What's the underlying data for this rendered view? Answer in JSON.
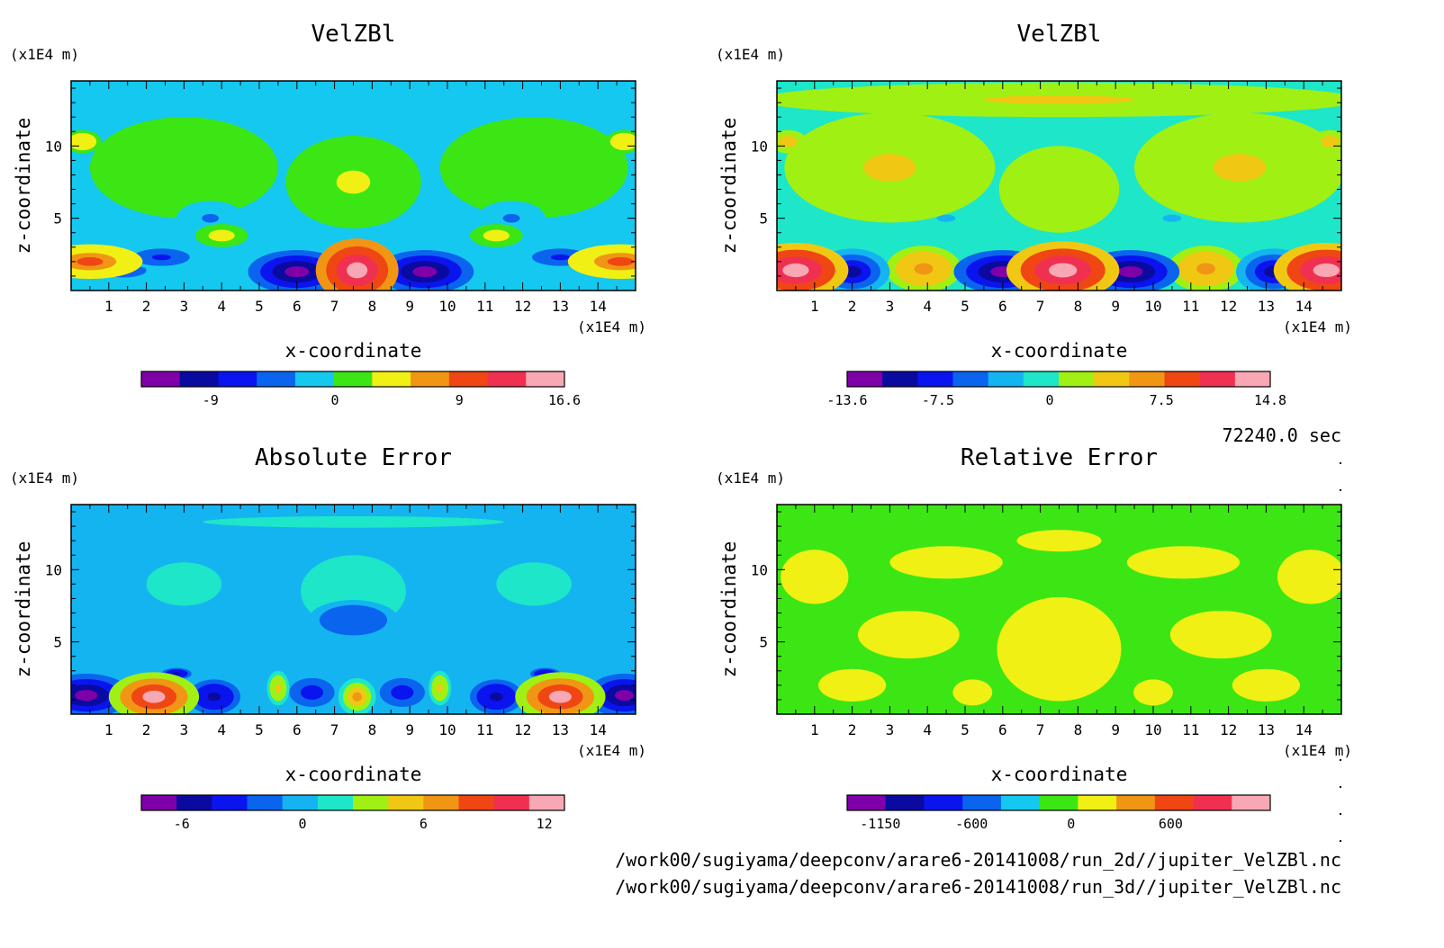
{
  "timestamp": "72240.0 sec",
  "files": [
    "/work00/sugiyama/deepconv/arare6-20141008/run_2d//jupiter_VelZBl.nc",
    "/work00/sugiyama/deepconv/arare6-20141008/run_3d//jupiter_VelZBl.nc"
  ],
  "chart_data": [
    {
      "type": "heatmap",
      "title": "VelZBl",
      "xlabel": "x-coordinate",
      "ylabel": "z-coordinate",
      "x_unit": "(x1E4 m)",
      "y_unit": "(x1E4 m)",
      "xlim": [
        0,
        15
      ],
      "ylim": [
        0,
        14.5
      ],
      "x_ticks": [
        1,
        2,
        3,
        4,
        5,
        6,
        7,
        8,
        9,
        10,
        11,
        12,
        13,
        14
      ],
      "y_ticks": [
        5,
        10
      ],
      "colorbar_ticks": [
        "-9",
        "0",
        "9",
        "16.6"
      ],
      "colorbar_ticks_pos": [
        -9,
        0,
        9,
        16.6
      ],
      "colorbar_range": [
        -14,
        16.6
      ],
      "colors": [
        "#7f00a8",
        "#0a0aa0",
        "#0a14ee",
        "#0a64ee",
        "#14c8f0",
        "#3ce614",
        "#f0f014",
        "#f09614",
        "#f04614",
        "#f03050",
        "#f8a8b4"
      ],
      "background_color": "#14c8f0",
      "features": [
        {
          "x": 7.6,
          "y": 1.4,
          "rx": 1.1,
          "ry": 2.2,
          "v": 16
        },
        {
          "x": 6.0,
          "y": 1.3,
          "rx": 1.3,
          "ry": 1.5,
          "v": -12
        },
        {
          "x": 9.4,
          "y": 1.3,
          "rx": 1.3,
          "ry": 1.5,
          "v": -12
        },
        {
          "x": 0.5,
          "y": 2.0,
          "rx": 1.4,
          "ry": 1.2,
          "v": 9
        },
        {
          "x": 14.6,
          "y": 2.0,
          "rx": 1.4,
          "ry": 1.2,
          "v": 9
        },
        {
          "x": 2.4,
          "y": 2.3,
          "rx": 1.0,
          "ry": 0.8,
          "v": -7
        },
        {
          "x": 13.0,
          "y": 2.3,
          "rx": 1.0,
          "ry": 0.8,
          "v": -7
        },
        {
          "x": 4.0,
          "y": 3.8,
          "rx": 0.7,
          "ry": 0.8,
          "v": 4
        },
        {
          "x": 11.3,
          "y": 3.8,
          "rx": 0.7,
          "ry": 0.8,
          "v": 4
        },
        {
          "x": 1.4,
          "y": 1.4,
          "rx": 1.2,
          "ry": 1.0,
          "v": -5
        },
        {
          "x": 3.7,
          "y": 5.0,
          "rx": 0.9,
          "ry": 1.2,
          "v": -3
        },
        {
          "x": 11.7,
          "y": 5.0,
          "rx": 0.9,
          "ry": 1.2,
          "v": -3
        },
        {
          "x": 3.0,
          "y": 8.5,
          "rx": 2.5,
          "ry": 3.5,
          "v": 2
        },
        {
          "x": 12.3,
          "y": 8.5,
          "rx": 2.5,
          "ry": 3.5,
          "v": 2
        },
        {
          "x": 7.5,
          "y": 7.5,
          "rx": 1.8,
          "ry": 3.2,
          "v": 3
        },
        {
          "x": 0.3,
          "y": 10.3,
          "rx": 0.5,
          "ry": 0.8,
          "v": 5
        },
        {
          "x": 14.7,
          "y": 10.3,
          "rx": 0.5,
          "ry": 0.8,
          "v": 5
        },
        {
          "x": 7.5,
          "y": 13.5,
          "rx": 8.0,
          "ry": 1.0,
          "v": -0.5
        }
      ]
    },
    {
      "type": "heatmap",
      "title": "VelZBl",
      "xlabel": "x-coordinate",
      "ylabel": "z-coordinate",
      "x_unit": "(x1E4 m)",
      "y_unit": "(x1E4 m)",
      "xlim": [
        0,
        15
      ],
      "ylim": [
        0,
        14.5
      ],
      "x_ticks": [
        1,
        2,
        3,
        4,
        5,
        6,
        7,
        8,
        9,
        10,
        11,
        12,
        13,
        14
      ],
      "y_ticks": [
        5,
        10
      ],
      "colorbar_ticks": [
        "-13.6",
        "-7.5",
        "0",
        "7.5",
        "14.8"
      ],
      "colorbar_ticks_pos": [
        -13.6,
        -7.5,
        0,
        7.5,
        14.8
      ],
      "colorbar_range": [
        -13.6,
        14.8
      ],
      "colors": [
        "#7f00a8",
        "#0a0aa0",
        "#0a14ee",
        "#0a64ee",
        "#14b4f0",
        "#1ee6c8",
        "#a0f014",
        "#f0c814",
        "#f09614",
        "#f04614",
        "#f03050",
        "#f8a8b4"
      ],
      "background_color": "#1ee6c8",
      "features": [
        {
          "x": 7.6,
          "y": 1.4,
          "rx": 1.5,
          "ry": 2.0,
          "v": 14
        },
        {
          "x": 0.5,
          "y": 1.4,
          "rx": 1.4,
          "ry": 1.9,
          "v": 14
        },
        {
          "x": 14.6,
          "y": 1.4,
          "rx": 1.4,
          "ry": 1.9,
          "v": 14
        },
        {
          "x": 2.0,
          "y": 1.3,
          "rx": 1.0,
          "ry": 1.6,
          "v": -10
        },
        {
          "x": 13.2,
          "y": 1.3,
          "rx": 1.0,
          "ry": 1.6,
          "v": -10
        },
        {
          "x": 6.0,
          "y": 1.3,
          "rx": 1.3,
          "ry": 1.5,
          "v": -12
        },
        {
          "x": 9.4,
          "y": 1.3,
          "rx": 1.3,
          "ry": 1.5,
          "v": -12
        },
        {
          "x": 3.9,
          "y": 1.5,
          "rx": 1.0,
          "ry": 1.6,
          "v": 6
        },
        {
          "x": 11.4,
          "y": 1.5,
          "rx": 1.0,
          "ry": 1.6,
          "v": 6
        },
        {
          "x": 3.0,
          "y": 8.5,
          "rx": 2.8,
          "ry": 3.8,
          "v": 3
        },
        {
          "x": 12.3,
          "y": 8.5,
          "rx": 2.8,
          "ry": 3.8,
          "v": 3
        },
        {
          "x": 7.5,
          "y": 7.0,
          "rx": 1.6,
          "ry": 3.0,
          "v": 2.5
        },
        {
          "x": 4.5,
          "y": 5.0,
          "rx": 1.0,
          "ry": 1.0,
          "v": -2
        },
        {
          "x": 10.5,
          "y": 5.0,
          "rx": 1.0,
          "ry": 1.0,
          "v": -2
        },
        {
          "x": 0.3,
          "y": 10.3,
          "rx": 0.5,
          "ry": 0.8,
          "v": 5
        },
        {
          "x": 14.7,
          "y": 10.3,
          "rx": 0.5,
          "ry": 0.8,
          "v": 5
        },
        {
          "x": 7.5,
          "y": 13.2,
          "rx": 8.0,
          "ry": 1.2,
          "v": 3
        }
      ]
    },
    {
      "type": "heatmap",
      "title": "Absolute Error",
      "xlabel": "x-coordinate",
      "ylabel": "z-coordinate",
      "x_unit": "(x1E4 m)",
      "y_unit": "(x1E4 m)",
      "xlim": [
        0,
        15
      ],
      "ylim": [
        0,
        14.5
      ],
      "x_ticks": [
        1,
        2,
        3,
        4,
        5,
        6,
        7,
        8,
        9,
        10,
        11,
        12,
        13,
        14
      ],
      "y_ticks": [
        5,
        10
      ],
      "colorbar_ticks": [
        "-6",
        "0",
        "6",
        "12"
      ],
      "colorbar_ticks_pos": [
        -6,
        0,
        6,
        12
      ],
      "colorbar_range": [
        -8,
        13
      ],
      "colors": [
        "#7f00a8",
        "#0a0aa0",
        "#0a14ee",
        "#0a64ee",
        "#14b4f0",
        "#1ee6c8",
        "#a0f014",
        "#f0c814",
        "#f09614",
        "#f04614",
        "#f03050",
        "#f8a8b4"
      ],
      "background_color": "#14b4f0",
      "features": [
        {
          "x": 2.2,
          "y": 1.2,
          "rx": 1.2,
          "ry": 1.7,
          "v": 12
        },
        {
          "x": 13.0,
          "y": 1.2,
          "rx": 1.2,
          "ry": 1.7,
          "v": 12
        },
        {
          "x": 0.4,
          "y": 1.3,
          "rx": 1.2,
          "ry": 1.5,
          "v": -7
        },
        {
          "x": 14.7,
          "y": 1.3,
          "rx": 1.0,
          "ry": 1.5,
          "v": -7
        },
        {
          "x": 3.8,
          "y": 1.2,
          "rx": 0.7,
          "ry": 1.2,
          "v": -5
        },
        {
          "x": 11.3,
          "y": 1.2,
          "rx": 0.7,
          "ry": 1.2,
          "v": -5
        },
        {
          "x": 6.4,
          "y": 1.5,
          "rx": 0.6,
          "ry": 1.0,
          "v": -4
        },
        {
          "x": 8.8,
          "y": 1.5,
          "rx": 0.6,
          "ry": 1.0,
          "v": -4
        },
        {
          "x": 5.5,
          "y": 1.8,
          "rx": 0.3,
          "ry": 1.2,
          "v": 5
        },
        {
          "x": 9.8,
          "y": 1.8,
          "rx": 0.3,
          "ry": 1.2,
          "v": 5
        },
        {
          "x": 7.6,
          "y": 1.2,
          "rx": 0.5,
          "ry": 1.3,
          "v": 6
        },
        {
          "x": 2.8,
          "y": 2.8,
          "rx": 0.4,
          "ry": 0.4,
          "v": -5
        },
        {
          "x": 12.6,
          "y": 2.8,
          "rx": 0.4,
          "ry": 0.4,
          "v": -5
        },
        {
          "x": 7.5,
          "y": 8.5,
          "rx": 2.8,
          "ry": 5.0,
          "v": 1.0
        },
        {
          "x": 3.0,
          "y": 9.0,
          "rx": 2.0,
          "ry": 3.0,
          "v": 1.0
        },
        {
          "x": 12.3,
          "y": 9.0,
          "rx": 2.0,
          "ry": 3.0,
          "v": 1.0
        },
        {
          "x": 7.5,
          "y": 6.5,
          "rx": 1.2,
          "ry": 1.4,
          "v": -2
        },
        {
          "x": 7.5,
          "y": 13.3,
          "rx": 8.0,
          "ry": 0.8,
          "v": 1.0
        }
      ]
    },
    {
      "type": "heatmap",
      "title": "Relative Error",
      "xlabel": "x-coordinate",
      "ylabel": "z-coordinate",
      "x_unit": "(x1E4 m)",
      "y_unit": "(x1E4 m)",
      "xlim": [
        0,
        15
      ],
      "ylim": [
        0,
        14.5
      ],
      "x_ticks": [
        1,
        2,
        3,
        4,
        5,
        6,
        7,
        8,
        9,
        10,
        11,
        12,
        13,
        14
      ],
      "y_ticks": [
        5,
        10
      ],
      "colorbar_ticks": [
        "-1150",
        "-600",
        "0",
        "600"
      ],
      "colorbar_ticks_pos": [
        -1150,
        -600,
        0,
        600
      ],
      "colorbar_range": [
        -1350,
        1200
      ],
      "colors": [
        "#7f00a8",
        "#0a0aa0",
        "#0a14ee",
        "#0a64ee",
        "#14c8f0",
        "#3ce614",
        "#f0f014",
        "#f09614",
        "#f04614",
        "#f03050",
        "#f8a8b4"
      ],
      "background_color": "#3ce614",
      "features": [
        {
          "x": 7.5,
          "y": 4.5,
          "rx": 2.2,
          "ry": 4.8,
          "v": 100
        },
        {
          "x": 3.5,
          "y": 5.5,
          "rx": 1.8,
          "ry": 2.2,
          "v": 100
        },
        {
          "x": 11.8,
          "y": 5.5,
          "rx": 1.8,
          "ry": 2.2,
          "v": 100
        },
        {
          "x": 1.0,
          "y": 9.5,
          "rx": 1.2,
          "ry": 2.5,
          "v": 100
        },
        {
          "x": 14.2,
          "y": 9.5,
          "rx": 1.2,
          "ry": 2.5,
          "v": 100
        },
        {
          "x": 4.5,
          "y": 10.5,
          "rx": 2.0,
          "ry": 1.5,
          "v": 100
        },
        {
          "x": 10.8,
          "y": 10.5,
          "rx": 2.0,
          "ry": 1.5,
          "v": 100
        },
        {
          "x": 7.5,
          "y": 12.0,
          "rx": 1.5,
          "ry": 1.0,
          "v": 100
        },
        {
          "x": 2.0,
          "y": 2.0,
          "rx": 1.2,
          "ry": 1.5,
          "v": 100
        },
        {
          "x": 13.0,
          "y": 2.0,
          "rx": 1.2,
          "ry": 1.5,
          "v": 100
        },
        {
          "x": 5.2,
          "y": 1.5,
          "rx": 0.7,
          "ry": 1.2,
          "v": 100
        },
        {
          "x": 10.0,
          "y": 1.5,
          "rx": 0.7,
          "ry": 1.2,
          "v": 100
        },
        {
          "x": 6.3,
          "y": 7.5,
          "rx": 0.8,
          "ry": 0.9,
          "v": -10
        },
        {
          "x": 8.8,
          "y": 7.5,
          "rx": 0.8,
          "ry": 0.9,
          "v": -10
        }
      ]
    }
  ]
}
